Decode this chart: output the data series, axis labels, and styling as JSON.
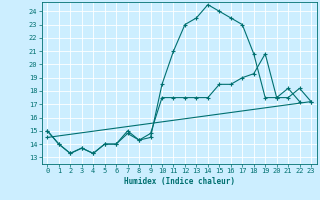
{
  "xlabel": "Humidex (Indice chaleur)",
  "bg_color": "#cceeff",
  "line_color": "#007070",
  "grid_color": "#ffffff",
  "xlim": [
    -0.5,
    23.5
  ],
  "ylim": [
    12.5,
    24.7
  ],
  "yticks": [
    13,
    14,
    15,
    16,
    17,
    18,
    19,
    20,
    21,
    22,
    23,
    24
  ],
  "xticks": [
    0,
    1,
    2,
    3,
    4,
    5,
    6,
    7,
    8,
    9,
    10,
    11,
    12,
    13,
    14,
    15,
    16,
    17,
    18,
    19,
    20,
    21,
    22,
    23
  ],
  "line1_x": [
    0,
    1,
    2,
    3,
    4,
    5,
    6,
    7,
    8,
    9,
    10,
    11,
    12,
    13,
    14,
    15,
    16,
    17,
    18,
    19,
    20,
    21,
    22
  ],
  "line1_y": [
    15.0,
    14.0,
    13.3,
    13.7,
    13.3,
    14.0,
    14.0,
    15.0,
    14.3,
    14.5,
    18.5,
    21.0,
    23.0,
    23.5,
    24.5,
    24.0,
    23.5,
    23.0,
    20.8,
    17.5,
    17.5,
    18.2,
    17.2
  ],
  "line2_x": [
    0,
    1,
    2,
    3,
    4,
    5,
    6,
    7,
    8,
    9,
    10,
    11,
    12,
    13,
    14,
    15,
    16,
    17,
    18,
    19,
    20,
    21,
    22,
    23
  ],
  "line2_y": [
    15.0,
    14.0,
    13.3,
    13.7,
    13.3,
    14.0,
    14.0,
    14.8,
    14.3,
    14.8,
    17.5,
    17.5,
    17.5,
    17.5,
    17.5,
    18.5,
    18.5,
    19.0,
    19.3,
    20.8,
    17.5,
    17.5,
    18.2,
    17.2
  ],
  "line3_x": [
    0,
    23
  ],
  "line3_y": [
    14.5,
    17.2
  ],
  "marker": "+",
  "markersize": 3,
  "linewidth": 0.8
}
